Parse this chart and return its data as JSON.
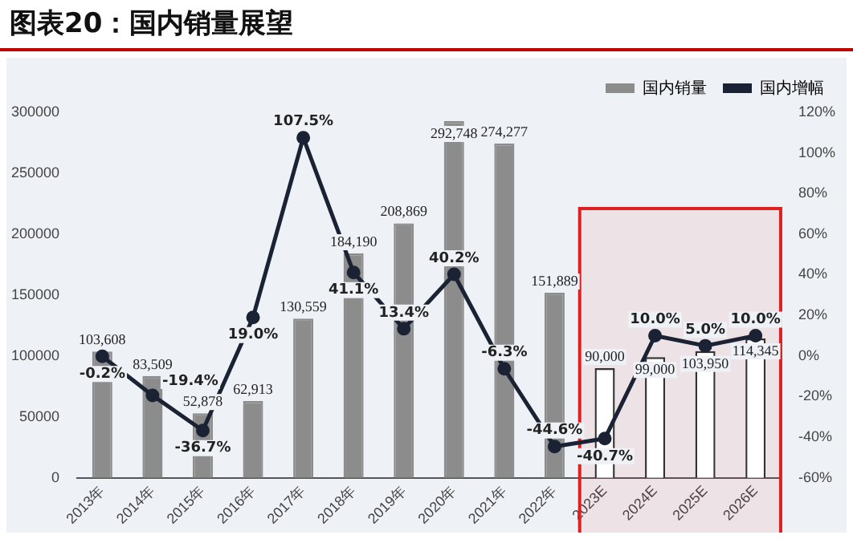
{
  "chart_data": {
    "type": "bar",
    "title": "图表20：国内销量展望",
    "categories": [
      "2013年",
      "2014年",
      "2015年",
      "2016年",
      "2017年",
      "2018年",
      "2019年",
      "2020年",
      "2021年",
      "2022年",
      "2023E",
      "2024E",
      "2025E",
      "2026E"
    ],
    "series": [
      {
        "name": "国内销量",
        "color": "#8c8c8c",
        "colors": [
          "#8c8c8c",
          "#8c8c8c",
          "#8c8c8c",
          "#8c8c8c",
          "#8c8c8c",
          "#8c8c8c",
          "#8c8c8c",
          "#8c8c8c",
          "#8c8c8c",
          "#8c8c8c",
          "#ffffff",
          "#ffffff",
          "#ffffff",
          "#ffffff"
        ],
        "values": [
          103608,
          83509,
          52878,
          62913,
          130559,
          184190,
          208869,
          292748,
          274277,
          151889,
          90000,
          99000,
          103950,
          114345
        ],
        "value_labels": [
          "103,608",
          "83,509",
          "52,878",
          "62,913",
          "130,559",
          "184,190",
          "208,869",
          "292,748",
          "274,277",
          "151,889",
          "90,000",
          "99,000",
          "103,950",
          "114,345"
        ]
      },
      {
        "name": "国内增幅",
        "type": "line",
        "axis": "y2",
        "color": "#1a2233",
        "values": [
          -0.2,
          -19.4,
          -36.7,
          19.0,
          107.5,
          41.1,
          13.4,
          40.2,
          -6.3,
          -44.6,
          -40.7,
          10.0,
          5.0,
          10.0
        ],
        "value_labels": [
          "-0.2%",
          "-19.4%",
          "-36.7%",
          "19.0%",
          "107.5%",
          "41.1%",
          "13.4%",
          "40.2%",
          "-6.3%",
          "-44.6%",
          "-40.7%",
          "10.0%",
          "5.0%",
          "10.0%"
        ]
      }
    ],
    "ylim": [
      0,
      300000
    ],
    "yticks": [
      0,
      50000,
      100000,
      150000,
      200000,
      250000,
      300000
    ],
    "y2lim": [
      -60,
      120
    ],
    "y2ticks": [
      {
        "value": -60,
        "label": "-60%"
      },
      {
        "value": -40,
        "label": "-40%"
      },
      {
        "value": -20,
        "label": "-20%"
      },
      {
        "value": 0,
        "label": "0%"
      },
      {
        "value": 20,
        "label": "20%"
      },
      {
        "value": 40,
        "label": "40%"
      },
      {
        "value": 60,
        "label": "60%"
      },
      {
        "value": 80,
        "label": "80%"
      },
      {
        "value": 100,
        "label": "100%"
      },
      {
        "value": 120,
        "label": "120%"
      }
    ],
    "bands": [
      {
        "axis": "x",
        "from": "2023E",
        "to": "2026E",
        "color": "#e02020"
      }
    ],
    "marker": "circle",
    "line_style": "solid",
    "grid": false,
    "legend": "top right"
  }
}
